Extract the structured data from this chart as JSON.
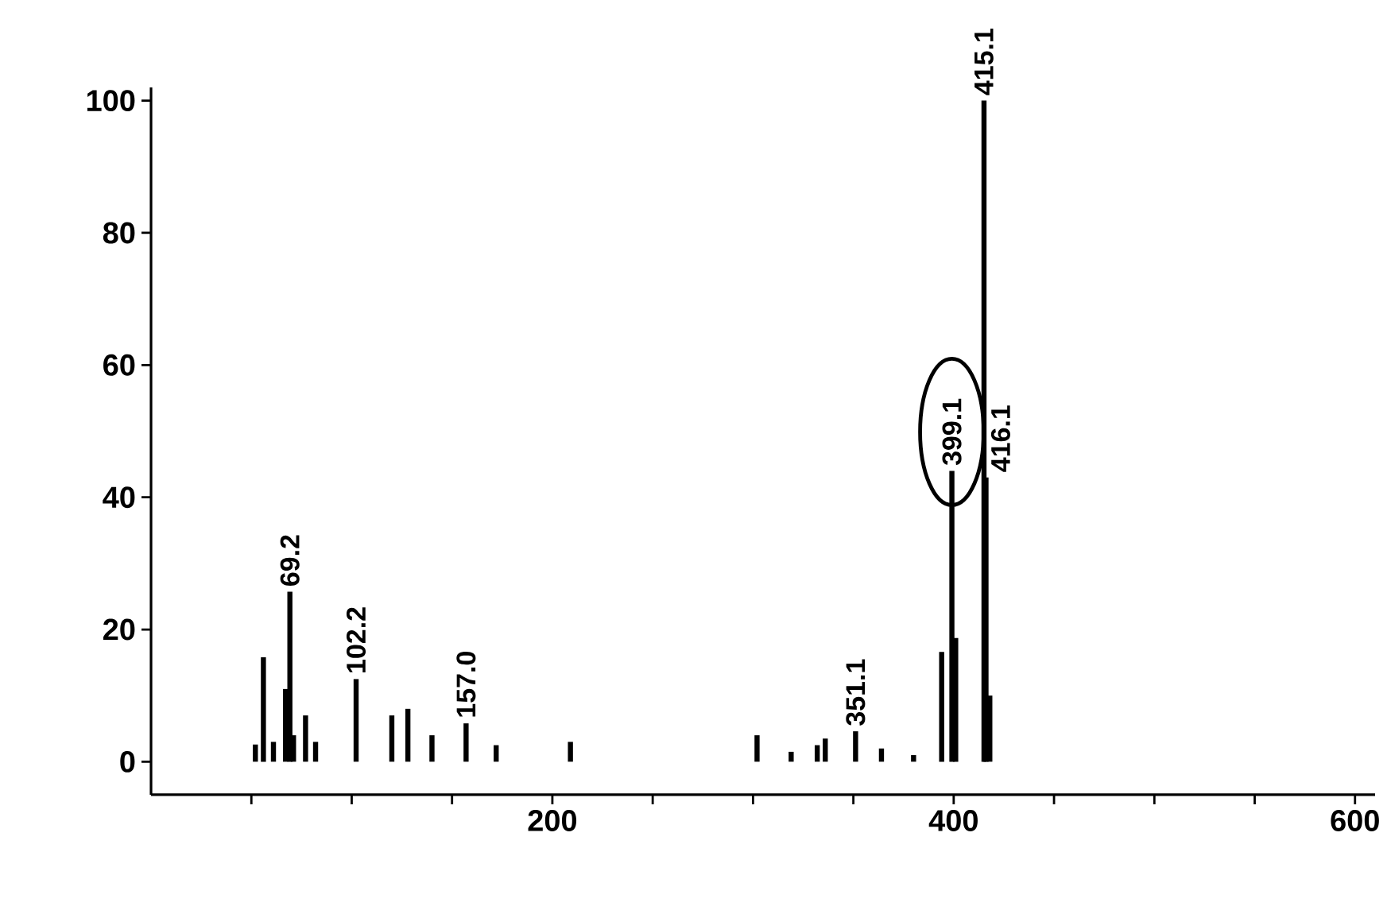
{
  "chart_data": {
    "type": "bar",
    "color": "#000000",
    "x": [
      52,
      56,
      61,
      67,
      69.2,
      71,
      77,
      82,
      102.2,
      120,
      128,
      140,
      157.0,
      172,
      209,
      302,
      319,
      332,
      336,
      351.1,
      364,
      380,
      394,
      399.1,
      401,
      415.1,
      416.1,
      418
    ],
    "values": [
      2.6,
      15.8,
      3,
      11,
      25.7,
      4,
      7,
      3,
      12.5,
      7,
      8,
      4,
      5.8,
      2.5,
      3,
      4,
      1.5,
      2.5,
      3.5,
      4.6,
      2,
      1,
      16.6,
      44,
      18.7,
      100,
      43,
      10
    ],
    "base": [
      0,
      0,
      0,
      0,
      0,
      0,
      0,
      0,
      0,
      0,
      0,
      0,
      0,
      0,
      0,
      0,
      0,
      0,
      0,
      0,
      0,
      0,
      0,
      0,
      0,
      0,
      0,
      0
    ],
    "xlim": [
      0,
      610
    ],
    "xticks": [
      {
        "value": 50,
        "label": null
      },
      {
        "value": 100,
        "label": null
      },
      {
        "value": 150,
        "label": null
      },
      200,
      {
        "value": 250,
        "label": null
      },
      {
        "value": 300,
        "label": null
      },
      {
        "value": 350,
        "label": null
      },
      400,
      {
        "value": 450,
        "label": null
      },
      {
        "value": 500,
        "label": null
      },
      {
        "value": 550,
        "label": null
      },
      600
    ],
    "ylim": [
      -5,
      102
    ],
    "yticks": [
      0,
      20,
      40,
      60,
      80,
      100
    ],
    "annotations": [
      {
        "text": "69.2",
        "x": 69.2,
        "y": 25.7
      },
      {
        "text": "102.2",
        "x": 102.2,
        "y": 12.5
      },
      {
        "text": "157.0",
        "x": 157.0,
        "y": 5.8
      },
      {
        "text": "351.1",
        "x": 351.1,
        "y": 4.6
      },
      {
        "text": "399.1",
        "x": 399.1,
        "y": 44
      },
      {
        "text": "415.1",
        "x": 415.1,
        "y": 100
      },
      {
        "text": "416.1",
        "x": 416.1,
        "y": 43
      }
    ]
  }
}
